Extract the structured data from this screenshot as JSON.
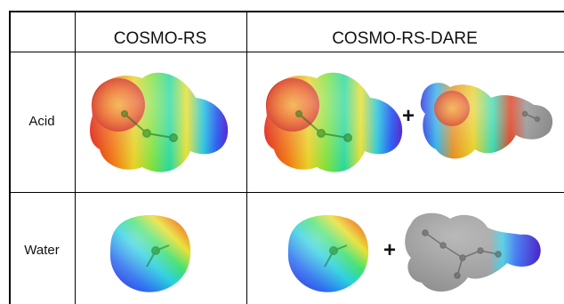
{
  "header": {
    "corner": "",
    "col1": "COSMO-RS",
    "col2": "COSMO-RS-DARE"
  },
  "rows": [
    {
      "label": "Acid"
    },
    {
      "label": "Water"
    }
  ],
  "operator": "+",
  "surfaces": {
    "acid_cosmo_rs": "sigma-surface-acid",
    "acid_dare_monomer": "sigma-surface-acid",
    "acid_dare_partner": "sigma-surface-acid-dimer-partial",
    "water_cosmo_rs": "sigma-surface-water",
    "water_dare_monomer": "sigma-surface-water",
    "water_dare_partner": "sigma-surface-water-cluster-partial"
  },
  "colors": {
    "negative": "#d01818",
    "positive": "#2a3cff",
    "neutral": "#2fd090",
    "inactive": "#8a8a8a"
  }
}
